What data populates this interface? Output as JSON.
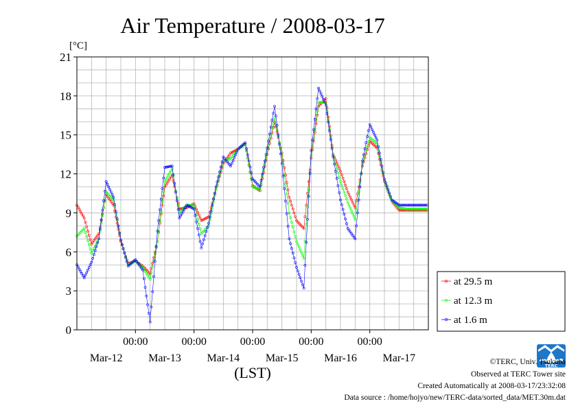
{
  "chart_data": {
    "type": "line",
    "title": "Air Temperature / 2008-03-17",
    "ylabel": "[°C]",
    "xlabel": "(LST)",
    "ylim": [
      0,
      21
    ],
    "yticks": [
      0,
      3,
      6,
      9,
      12,
      15,
      18,
      21
    ],
    "xlim_days": [
      0,
      6
    ],
    "x_ticks": [
      {
        "time": "00:00",
        "day": "Mar-13"
      },
      {
        "time": "00:00",
        "day": "Mar-14"
      },
      {
        "time": "00:00",
        "day": "Mar-15"
      },
      {
        "time": "00:00",
        "day": "Mar-16"
      },
      {
        "time": "00:00",
        "day": "Mar-17"
      }
    ],
    "day_labels": [
      "Mar-12",
      "Mar-13",
      "Mar-14",
      "Mar-15",
      "Mar-16",
      "Mar-17"
    ],
    "grid": true,
    "legend_position": "right",
    "series": [
      {
        "name": "at 29.5 m",
        "color": "#ff0000",
        "x": [
          "03-12 00:00",
          "03-12 03:00",
          "03-12 06:00",
          "03-12 09:00",
          "03-12 12:00",
          "03-12 15:00",
          "03-12 18:00",
          "03-12 21:00",
          "03-13 00:00",
          "03-13 03:00",
          "03-13 06:00",
          "03-13 09:00",
          "03-13 12:00",
          "03-13 15:00",
          "03-13 18:00",
          "03-13 21:00",
          "03-14 00:00",
          "03-14 03:00",
          "03-14 06:00",
          "03-14 09:00",
          "03-14 12:00",
          "03-14 15:00",
          "03-14 18:00",
          "03-14 21:00",
          "03-15 00:00",
          "03-15 03:00",
          "03-15 06:00",
          "03-15 09:00",
          "03-15 12:00",
          "03-15 15:00",
          "03-15 18:00",
          "03-15 21:00",
          "03-16 00:00",
          "03-16 03:00",
          "03-16 06:00",
          "03-16 09:00",
          "03-16 12:00",
          "03-16 15:00",
          "03-16 18:00",
          "03-16 21:00",
          "03-17 00:00",
          "03-17 03:00",
          "03-17 06:00",
          "03-17 09:00",
          "03-17 12:00",
          "03-17 15:00",
          "03-17 18:00",
          "03-17 21:00",
          "03-17 23:30"
        ],
        "values": [
          9.6,
          8.6,
          6.6,
          7.4,
          10.4,
          9.6,
          6.8,
          5.1,
          5.3,
          4.9,
          4.3,
          6.8,
          11.0,
          11.9,
          9.3,
          9.4,
          9.7,
          8.4,
          8.7,
          10.8,
          12.8,
          13.6,
          13.9,
          14.3,
          11.1,
          10.7,
          13.5,
          16.0,
          13.6,
          10.2,
          8.4,
          7.8,
          13.2,
          17.2,
          17.8,
          13.5,
          12.2,
          10.6,
          9.4,
          12.6,
          14.5,
          14.0,
          11.4,
          9.9,
          9.2,
          9.2,
          9.2,
          9.2,
          9.2
        ]
      },
      {
        "name": "at 12.3 m",
        "color": "#00ff00",
        "x": [
          "03-12 00:00",
          "03-12 03:00",
          "03-12 06:00",
          "03-12 09:00",
          "03-12 12:00",
          "03-12 15:00",
          "03-12 18:00",
          "03-12 21:00",
          "03-13 00:00",
          "03-13 03:00",
          "03-13 06:00",
          "03-13 09:00",
          "03-13 12:00",
          "03-13 15:00",
          "03-13 18:00",
          "03-13 21:00",
          "03-14 00:00",
          "03-14 03:00",
          "03-14 06:00",
          "03-14 09:00",
          "03-14 12:00",
          "03-14 15:00",
          "03-14 18:00",
          "03-14 21:00",
          "03-15 00:00",
          "03-15 03:00",
          "03-15 06:00",
          "03-15 09:00",
          "03-15 12:00",
          "03-15 15:00",
          "03-15 18:00",
          "03-15 21:00",
          "03-16 00:00",
          "03-16 03:00",
          "03-16 06:00",
          "03-16 09:00",
          "03-16 12:00",
          "03-16 15:00",
          "03-16 18:00",
          "03-16 21:00",
          "03-17 00:00",
          "03-17 03:00",
          "03-17 06:00",
          "03-17 09:00",
          "03-17 12:00",
          "03-17 15:00",
          "03-17 18:00",
          "03-17 21:00",
          "03-17 23:30"
        ],
        "values": [
          7.2,
          7.8,
          5.9,
          7.0,
          10.6,
          10.0,
          6.9,
          5.0,
          5.3,
          4.8,
          3.9,
          6.8,
          11.4,
          12.4,
          9.0,
          9.6,
          9.6,
          7.4,
          8.0,
          10.8,
          13.0,
          13.2,
          13.9,
          14.3,
          11.0,
          10.8,
          13.8,
          16.3,
          13.4,
          9.0,
          6.8,
          5.5,
          13.4,
          17.5,
          17.5,
          13.4,
          11.4,
          9.8,
          8.5,
          12.8,
          14.8,
          14.3,
          11.5,
          9.9,
          9.4,
          9.3,
          9.3,
          9.3,
          9.3
        ]
      },
      {
        "name": "at 1.6 m",
        "color": "#0000ff",
        "x": [
          "03-12 00:00",
          "03-12 03:00",
          "03-12 06:00",
          "03-12 09:00",
          "03-12 12:00",
          "03-12 15:00",
          "03-12 18:00",
          "03-12 21:00",
          "03-13 00:00",
          "03-13 03:00",
          "03-13 06:00",
          "03-13 09:00",
          "03-13 12:00",
          "03-13 15:00",
          "03-13 18:00",
          "03-13 21:00",
          "03-14 00:00",
          "03-14 03:00",
          "03-14 06:00",
          "03-14 09:00",
          "03-14 12:00",
          "03-14 15:00",
          "03-14 18:00",
          "03-14 21:00",
          "03-15 00:00",
          "03-15 03:00",
          "03-15 06:00",
          "03-15 09:00",
          "03-15 12:00",
          "03-15 15:00",
          "03-15 18:00",
          "03-15 21:00",
          "03-16 00:00",
          "03-16 03:00",
          "03-16 06:00",
          "03-16 09:00",
          "03-16 12:00",
          "03-16 15:00",
          "03-16 18:00",
          "03-16 21:00",
          "03-17 00:00",
          "03-17 03:00",
          "03-17 06:00",
          "03-17 09:00",
          "03-17 12:00",
          "03-17 15:00",
          "03-17 18:00",
          "03-17 21:00",
          "03-17 23:30"
        ],
        "values": [
          5.0,
          4.0,
          5.2,
          7.0,
          11.4,
          10.2,
          6.9,
          4.9,
          5.4,
          4.6,
          0.6,
          7.6,
          12.5,
          12.6,
          8.6,
          9.6,
          9.3,
          6.3,
          8.2,
          11.0,
          13.3,
          12.6,
          13.9,
          14.4,
          11.6,
          11.0,
          14.0,
          17.2,
          12.8,
          7.0,
          4.8,
          3.2,
          13.8,
          18.6,
          17.3,
          13.3,
          10.0,
          7.8,
          7.0,
          13.0,
          15.8,
          14.6,
          11.6,
          10.0,
          9.6,
          9.6,
          9.6,
          9.6,
          9.6
        ]
      }
    ]
  },
  "footer": {
    "copyright": "©TERC, Univ. Tsukuba",
    "observed": "Observed at TERC Tower site",
    "created": "Created Automatically at 2008-03-17/23:32:08",
    "source": "Data source : /home/hojyo/new/TERC-data/sorted_data/MET.30m.dat"
  },
  "logo": {
    "text": "TERC",
    "color": "#1e78c8"
  }
}
